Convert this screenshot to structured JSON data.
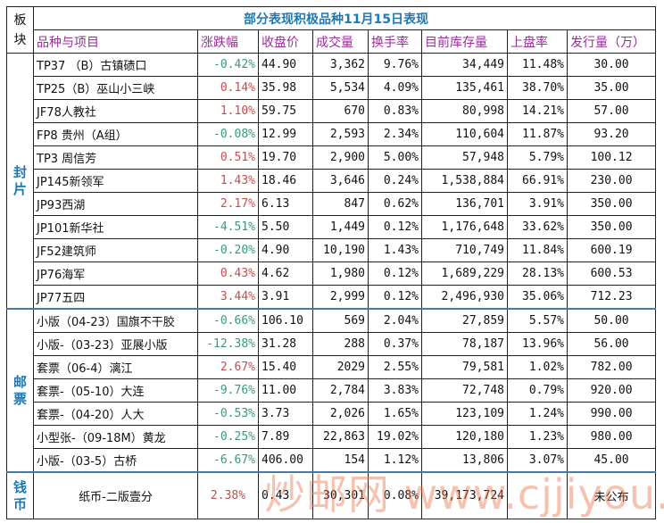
{
  "title": "部分表现积极品种11月15日表现",
  "block_header": "板块",
  "headers": [
    "品种与项目",
    "涨跌幅",
    "收盘价",
    "成交量",
    "换手率",
    "目前库存量",
    "上盘率",
    "发行量（万）"
  ],
  "colors": {
    "title": "#1f78b0",
    "header": "#9b2d9b",
    "up": "#c0504d",
    "down": "#3a9a73",
    "separator": "#4a78a8"
  },
  "sections": [
    {
      "label": "封片",
      "rows": [
        {
          "name": "TP37 （B）古镇碛口",
          "change": "-0.42%",
          "dir": "dn",
          "close": "44.90",
          "volume": "3,362",
          "turnover": "9.76%",
          "stock": "34,449",
          "listed": "11.48%",
          "issue": "30.00"
        },
        {
          "name": "TP25（B）巫山小三峡",
          "change": "0.14%",
          "dir": "up",
          "close": "35.98",
          "volume": "5,534",
          "turnover": "4.09%",
          "stock": "135,461",
          "listed": "38.70%",
          "issue": "35.00"
        },
        {
          "name": "JF78人教社",
          "change": "1.10%",
          "dir": "up",
          "close": "59.75",
          "volume": "670",
          "turnover": "0.83%",
          "stock": "80,998",
          "listed": "14.21%",
          "issue": "57.00"
        },
        {
          "name": "FP8 贵州（A组）",
          "change": "-0.08%",
          "dir": "dn",
          "close": "12.99",
          "volume": "2,593",
          "turnover": "2.34%",
          "stock": "110,604",
          "listed": "11.87%",
          "issue": "93.20"
        },
        {
          "name": "TP3 周信芳",
          "change": "0.51%",
          "dir": "up",
          "close": "19.70",
          "volume": "2,900",
          "turnover": "5.00%",
          "stock": "57,948",
          "listed": "5.79%",
          "issue": "100.12"
        },
        {
          "name": "JP145新领军",
          "change": "1.43%",
          "dir": "up",
          "close": "18.46",
          "volume": "3,646",
          "turnover": "0.24%",
          "stock": "1,538,884",
          "listed": "66.91%",
          "issue": "230.00"
        },
        {
          "name": "JP93西湖",
          "change": "2.17%",
          "dir": "up",
          "close": "6.13",
          "volume": "847",
          "turnover": "0.62%",
          "stock": "136,701",
          "listed": "3.91%",
          "issue": "350.00"
        },
        {
          "name": "JP101新华社",
          "change": "-4.51%",
          "dir": "dn",
          "close": "5.50",
          "volume": "1,449",
          "turnover": "0.12%",
          "stock": "1,176,648",
          "listed": "33.62%",
          "issue": "350.00"
        },
        {
          "name": "JF52建筑师",
          "change": "-0.20%",
          "dir": "dn",
          "close": "4.90",
          "volume": "10,190",
          "turnover": "1.43%",
          "stock": "710,749",
          "listed": "11.84%",
          "issue": "600.19"
        },
        {
          "name": "JP76海军",
          "change": "0.43%",
          "dir": "up",
          "close": "4.62",
          "volume": "1,980",
          "turnover": "0.12%",
          "stock": "1,689,229",
          "listed": "28.13%",
          "issue": "600.53"
        },
        {
          "name": "JP77五四",
          "change": "3.44%",
          "dir": "up",
          "close": "3.91",
          "volume": "2,999",
          "turnover": "0.12%",
          "stock": "2,496,930",
          "listed": "35.06%",
          "issue": "712.23"
        }
      ]
    },
    {
      "label": "邮票",
      "rows": [
        {
          "name": "小版（04-23）国旗不干胶",
          "change": "-0.66%",
          "dir": "dn",
          "close": "106.10",
          "volume": "569",
          "turnover": "2.04%",
          "stock": "27,859",
          "listed": "5.57%",
          "issue": "50.00"
        },
        {
          "name": "小版-（03-23）亚展小版",
          "change": "-12.38%",
          "dir": "dn",
          "close": "31.28",
          "volume": "288",
          "turnover": "0.37%",
          "stock": "78,187",
          "listed": "13.96%",
          "issue": "56.00"
        },
        {
          "name": "套票（06-4）漓江",
          "change": "2.67%",
          "dir": "up",
          "close": "15.40",
          "volume": "2029",
          "turnover": "2.55%",
          "stock": "79,581",
          "listed": "1.02%",
          "issue": "782.00"
        },
        {
          "name": "套票-（05-10）大连",
          "change": "-9.76%",
          "dir": "dn",
          "close": "11.00",
          "volume": "2,784",
          "turnover": "3.83%",
          "stock": "72,748",
          "listed": "0.79%",
          "issue": "920.00"
        },
        {
          "name": "套票-（04-20）人大",
          "change": "-0.53%",
          "dir": "dn",
          "close": "3.73",
          "volume": "2,026",
          "turnover": "1.65%",
          "stock": "123,109",
          "listed": "1.24%",
          "issue": "990.00"
        },
        {
          "name": "小型张-（09-18M）黄龙",
          "change": "-0.25%",
          "dir": "dn",
          "close": "7.89",
          "volume": "22,863",
          "turnover": "19.02%",
          "stock": "120,180",
          "listed": "1.23%",
          "issue": "980.00"
        },
        {
          "name": "小版-（03-5）古桥",
          "change": "-6.67%",
          "dir": "dn",
          "close": "406.00",
          "volume": "154",
          "turnover": "1.12%",
          "stock": "13,806",
          "listed": "3.07%",
          "issue": "45.00"
        }
      ]
    },
    {
      "label": "钱币",
      "rows": [
        {
          "name": "纸币-二版壹分",
          "change": "2.38%",
          "dir": "up",
          "close": "0.43",
          "volume": "30,301",
          "turnover": "0.08%",
          "stock": "39,173,724",
          "listed": "",
          "issue": "未公布"
        }
      ]
    }
  ],
  "watermark": "炒邮网 www.cjjiyou.net"
}
